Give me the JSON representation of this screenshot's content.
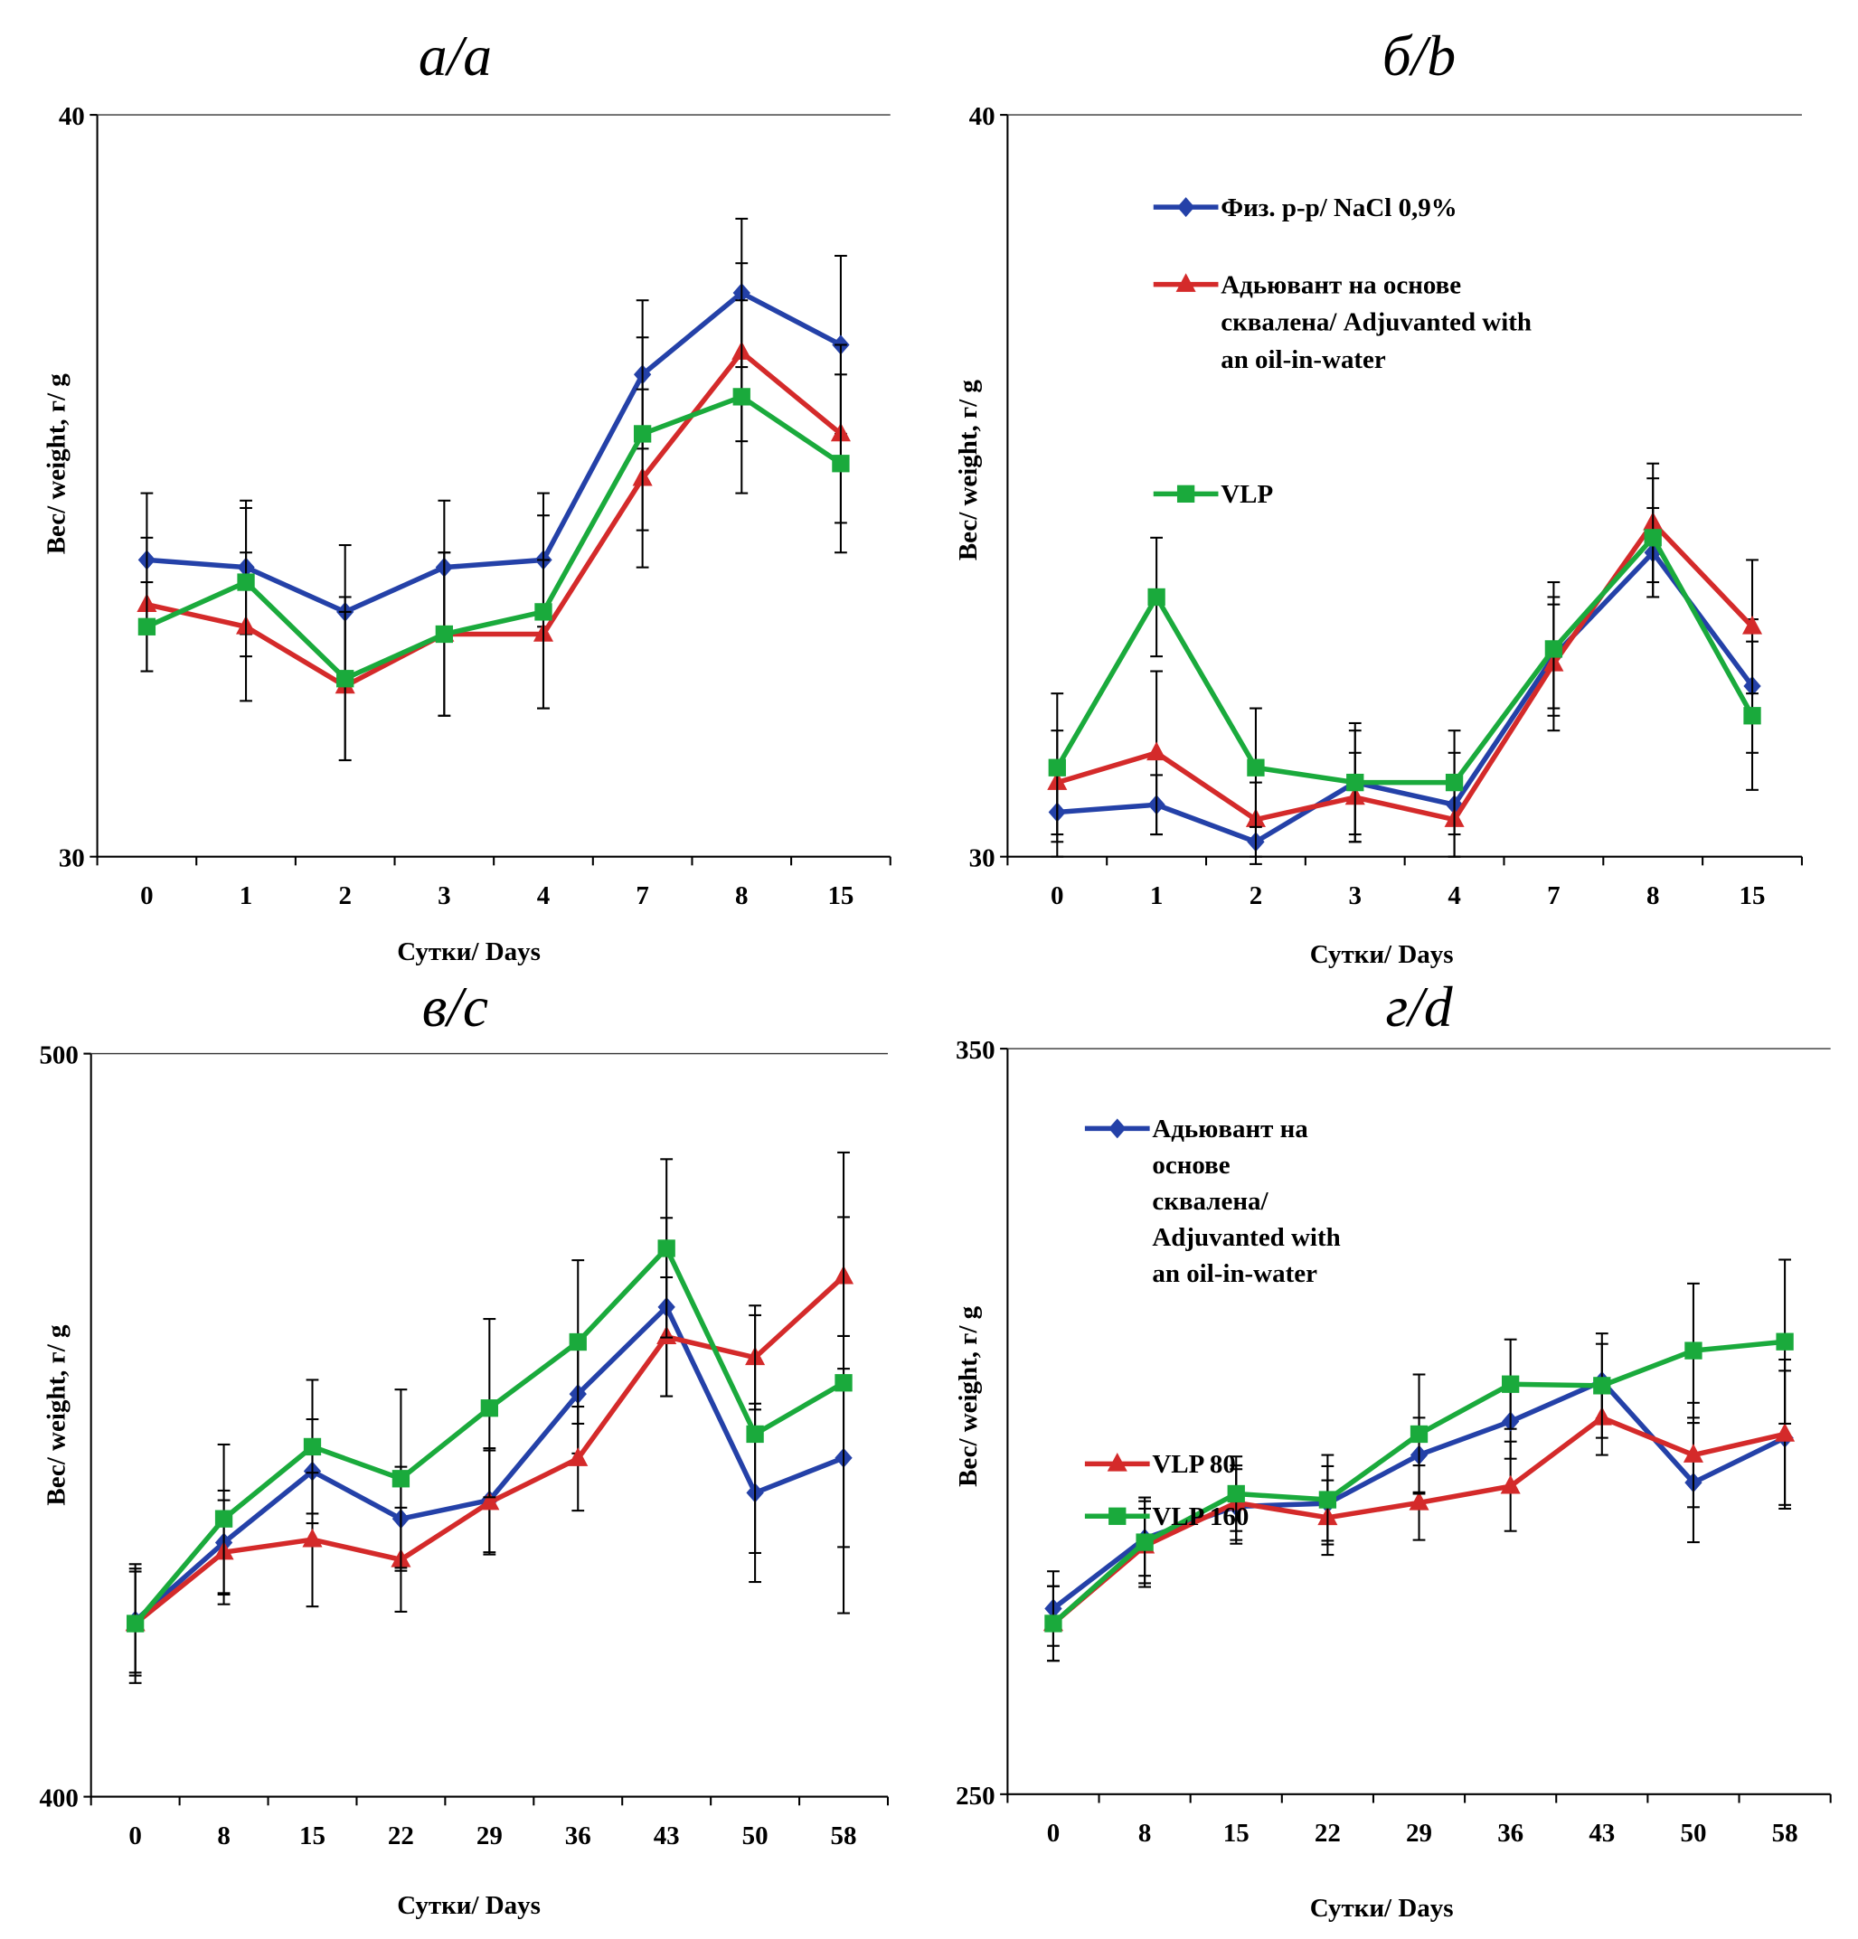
{
  "chart_data": [
    {
      "type": "line",
      "title": "а/a",
      "xlabel": "Сутки/ Days",
      "ylabel": "Вес/ weight, г/ g",
      "categories": [
        "0",
        "1",
        "2",
        "3",
        "4",
        "7",
        "8",
        "15"
      ],
      "ylim": [
        30,
        40
      ],
      "ytick_labels": [
        "30",
        "40"
      ],
      "grid": false,
      "legend": [],
      "series": [
        {
          "color": "#2441a8",
          "marker": "diamond",
          "values": [
            34.0,
            33.9,
            33.3,
            33.9,
            34.0,
            36.5,
            37.6,
            36.9
          ],
          "errors": [
            0.9,
            0.9,
            0.9,
            0.9,
            0.9,
            1.0,
            1.0,
            1.2
          ]
        },
        {
          "color": "#d42a2a",
          "marker": "triangle",
          "values": [
            33.4,
            33.1,
            32.3,
            33.0,
            33.0,
            35.1,
            36.8,
            35.7
          ],
          "errors": [
            0.9,
            1.0,
            1.0,
            1.1,
            1.0,
            1.2,
            1.2,
            1.2
          ]
        },
        {
          "color": "#1aaa3c",
          "marker": "square",
          "values": [
            33.1,
            33.7,
            32.4,
            33.0,
            33.3,
            35.7,
            36.2,
            35.3
          ],
          "errors": [
            0.6,
            1.0,
            1.1,
            1.1,
            1.3,
            1.3,
            1.3,
            1.2
          ]
        }
      ]
    },
    {
      "type": "line",
      "title": "б/b",
      "xlabel": "Сутки/ Days",
      "ylabel": "Вес/ weight, г/ g",
      "categories": [
        "0",
        "1",
        "2",
        "3",
        "4",
        "7",
        "8",
        "15"
      ],
      "ylim": [
        30,
        40
      ],
      "ytick_labels": [
        "30",
        "40"
      ],
      "grid": false,
      "legend_position": "top-left",
      "series": [
        {
          "name": "Физ. р-р/ NaCl 0,9%",
          "color": "#2441a8",
          "marker": "diamond",
          "values": [
            30.6,
            30.7,
            30.2,
            31.0,
            30.7,
            32.7,
            34.1,
            32.3
          ],
          "errors": [
            0.6,
            0.4,
            0.3,
            0.7,
            0.7,
            0.7,
            0.6,
            0.9
          ]
        },
        {
          "name": "Адьювант на основе сквалена/ Adjuvanted with an oil-in-water",
          "color": "#d42a2a",
          "marker": "triangle",
          "values": [
            31.0,
            31.4,
            30.5,
            30.8,
            30.5,
            32.6,
            34.5,
            33.1
          ],
          "errors": [
            0.7,
            1.1,
            0.5,
            0.6,
            0.5,
            0.9,
            0.8,
            0.9
          ]
        },
        {
          "name": "VLP",
          "color": "#1aaa3c",
          "marker": "square",
          "values": [
            31.2,
            33.5,
            31.2,
            31.0,
            31.0,
            32.8,
            34.3,
            31.9
          ],
          "errors": [
            1.0,
            0.8,
            0.8,
            0.8,
            0.7,
            0.9,
            0.8,
            1.0
          ]
        }
      ],
      "legend_lines": [
        [
          "Физ. р-р/ NaCl 0,9%"
        ],
        [
          "Адьювант на основе",
          "сквалена/ Adjuvanted with",
          "an oil-in-water"
        ],
        [
          "VLP"
        ]
      ]
    },
    {
      "type": "line",
      "title": "в/c",
      "xlabel": "Сутки/ Days",
      "ylabel": "Вес/ weight, г/ g",
      "categories": [
        "0",
        "8",
        "15",
        "22",
        "29",
        "36",
        "43",
        "50",
        "58"
      ],
      "ylim": [
        400,
        500
      ],
      "ytick_labels": [
        "400",
        "500"
      ],
      "grid": false,
      "legend": [],
      "series": [
        {
          "color": "#2441a8",
          "marker": "diamond",
          "values": [
            423.7,
            434.2,
            443.8,
            437.4,
            439.9,
            454.2,
            465.9,
            440.9,
            445.6
          ],
          "errors": [
            7,
            7,
            7,
            7,
            7,
            8,
            12,
            12,
            12
          ]
        },
        {
          "color": "#d42a2a",
          "marker": "triangle",
          "values": [
            423.3,
            432.9,
            434.6,
            431.9,
            439.6,
            445.5,
            461.9,
            459.1,
            470.0
          ],
          "errors": [
            7,
            7,
            9,
            7,
            7,
            7,
            8,
            7,
            8
          ]
        },
        {
          "color": "#1aaa3c",
          "marker": "square",
          "values": [
            423.3,
            437.4,
            447.1,
            442.8,
            452.3,
            461.2,
            473.8,
            448.8,
            455.7
          ],
          "errors": [
            8,
            10,
            9,
            12,
            12,
            11,
            12,
            16,
            31
          ]
        }
      ]
    },
    {
      "type": "line",
      "title": "г/d",
      "xlabel": "Сутки/ Days",
      "ylabel": "Вес/ weight, г/ g",
      "categories": [
        "0",
        "8",
        "15",
        "22",
        "29",
        "36",
        "43",
        "50",
        "58"
      ],
      "ylim": [
        250,
        350
      ],
      "ytick_labels": [
        "250",
        "350"
      ],
      "grid": false,
      "legend_position": "top-left",
      "series": [
        {
          "name": "Адьювант на основе сквалена/ Adjuvanted with an oil-in-water",
          "color": "#2441a8",
          "marker": "diamond",
          "values": [
            274.9,
            284.3,
            288.6,
            289.0,
            295.5,
            300.0,
            305.4,
            291.8,
            297.8
          ],
          "errors": [
            5,
            5,
            5,
            5,
            5,
            5,
            5,
            8,
            9
          ]
        },
        {
          "name": "VLP 80",
          "color": "#d42a2a",
          "marker": "triangle",
          "values": [
            272.9,
            283.3,
            289.1,
            287.1,
            289.1,
            291.3,
            300.5,
            295.5,
            298.3
          ],
          "errors": [
            5,
            5,
            5,
            5,
            5,
            6,
            5,
            7,
            10
          ]
        },
        {
          "name": "VLP 160",
          "color": "#1aaa3c",
          "marker": "square",
          "values": [
            272.9,
            283.8,
            290.3,
            289.5,
            298.3,
            305.0,
            304.8,
            309.5,
            310.7
          ],
          "errors": [
            5,
            6,
            5,
            6,
            8,
            6,
            7,
            9,
            11
          ]
        }
      ],
      "legend_lines": [
        [
          "Адьювант на",
          "основе",
          "сквалена/",
          "Adjuvanted with",
          "an oil-in-water"
        ],
        [
          "VLP 80"
        ],
        [
          "VLP 160"
        ]
      ]
    }
  ]
}
